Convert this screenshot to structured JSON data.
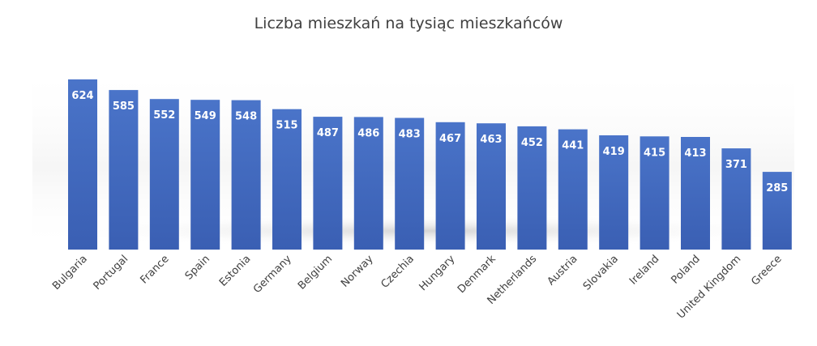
{
  "chart_data": {
    "type": "bar",
    "title": "Liczba mieszkań na tysiąc mieszkańców",
    "categories": [
      "Bulgaria",
      "Portugal",
      "France",
      "Spain",
      "Estonia",
      "Germany",
      "Belgium",
      "Norway",
      "Czechia",
      "Hungary",
      "Denmark",
      "Netherlands",
      "Austria",
      "Slovakia",
      "Ireland",
      "Poland",
      "United Kingdom",
      "Greece"
    ],
    "values": [
      624,
      585,
      552,
      549,
      548,
      515,
      487,
      486,
      483,
      467,
      463,
      452,
      441,
      419,
      415,
      413,
      371,
      285
    ],
    "ylim": [
      0,
      624
    ],
    "xlabel": "",
    "ylabel": "",
    "grid": false,
    "legend": "none",
    "colors": {
      "bar_top": "#4a74c9",
      "bar_bottom": "#3a5fb3",
      "label": "#ffffff",
      "axis_text": "#404040"
    }
  }
}
